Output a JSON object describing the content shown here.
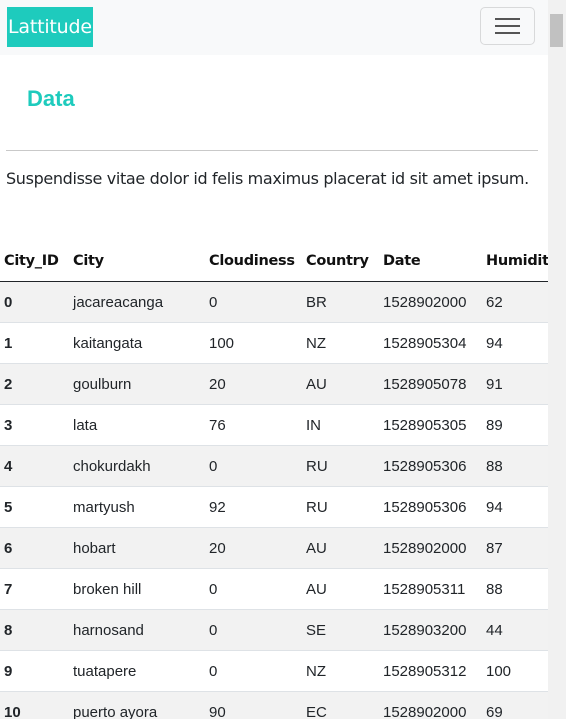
{
  "navbar": {
    "brand": "Lattitude",
    "toggler_icon": "hamburger-icon"
  },
  "page": {
    "heading": "Data",
    "intro": "Suspendisse vitae dolor id felis maximus placerat id sit amet ipsum."
  },
  "table": {
    "columns": [
      "City_ID",
      "City",
      "Cloudiness",
      "Country",
      "Date",
      "Humidit"
    ],
    "rows": [
      [
        "0",
        "jacareacanga",
        "0",
        "BR",
        "1528902000",
        "62"
      ],
      [
        "1",
        "kaitangata",
        "100",
        "NZ",
        "1528905304",
        "94"
      ],
      [
        "2",
        "goulburn",
        "20",
        "AU",
        "1528905078",
        "91"
      ],
      [
        "3",
        "lata",
        "76",
        "IN",
        "1528905305",
        "89"
      ],
      [
        "4",
        "chokurdakh",
        "0",
        "RU",
        "1528905306",
        "88"
      ],
      [
        "5",
        "martyush",
        "92",
        "RU",
        "1528905306",
        "94"
      ],
      [
        "6",
        "hobart",
        "20",
        "AU",
        "1528902000",
        "87"
      ],
      [
        "7",
        "broken hill",
        "0",
        "AU",
        "1528905311",
        "88"
      ],
      [
        "8",
        "harnosand",
        "0",
        "SE",
        "1528903200",
        "44"
      ],
      [
        "9",
        "tuatapere",
        "0",
        "NZ",
        "1528905312",
        "100"
      ],
      [
        "10",
        "puerto ayora",
        "90",
        "EC",
        "1528902000",
        "69"
      ]
    ]
  }
}
